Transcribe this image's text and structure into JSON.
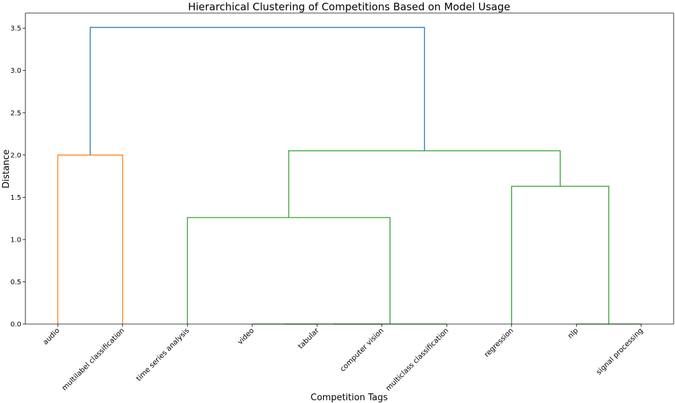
{
  "chart_data": {
    "type": "dendrogram",
    "title": "Hierarchical Clustering of Competitions Based on Model Usage",
    "xlabel": "Competition Tags",
    "ylabel": "Distance",
    "ylim": [
      0,
      3.68
    ],
    "y_ticks": [
      0.0,
      0.5,
      1.0,
      1.5,
      2.0,
      2.5,
      3.0,
      3.5
    ],
    "y_tick_labels": [
      "0.0",
      "0.5",
      "1.0",
      "1.5",
      "2.0",
      "2.5",
      "3.0",
      "3.5"
    ],
    "grid": false,
    "leaves": [
      "audio",
      "multilabel classification",
      "time series analysis",
      "video",
      "tabular",
      "computer vision",
      "multiclass classification",
      "regression",
      "nlp",
      "signal processing"
    ],
    "colors": {
      "cluster_orange": "#ff7f0e",
      "cluster_green": "#2ca02c",
      "root_blue": "#1f77b4"
    },
    "links": [
      {
        "left": "leaf:0",
        "right": "leaf:1",
        "height": 2.0,
        "color": "cluster_orange"
      },
      {
        "left": "leaf:3",
        "right": "leaf:4",
        "height": 0.0,
        "color": "cluster_green"
      },
      {
        "left": "link:1",
        "right": "leaf:5",
        "height": 0.0,
        "color": "cluster_green"
      },
      {
        "left": "link:2",
        "right": "leaf:6",
        "height": 0.0,
        "color": "cluster_green"
      },
      {
        "left": "leaf:2",
        "right": "link:3",
        "height": 1.26,
        "color": "cluster_green"
      },
      {
        "left": "leaf:8",
        "right": "leaf:9",
        "height": 0.0,
        "color": "cluster_green"
      },
      {
        "left": "leaf:7",
        "right": "link:5",
        "height": 1.63,
        "color": "cluster_green"
      },
      {
        "left": "link:4",
        "right": "link:6",
        "height": 2.05,
        "color": "cluster_green"
      },
      {
        "left": "link:0",
        "right": "link:7",
        "height": 3.51,
        "color": "root_blue"
      }
    ]
  }
}
